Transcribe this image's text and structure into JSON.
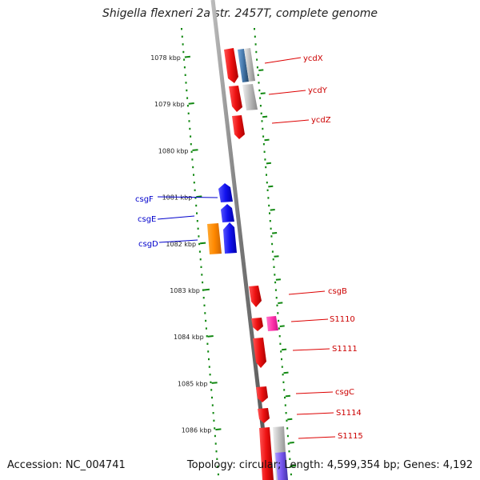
{
  "title": "Shigella flexneri 2a str. 2457T, complete genome",
  "footer": {
    "accession": "Accession: NC_004741",
    "summary": "Topology: circular; Length: 4,599,354 bp; Genes: 4,192"
  },
  "ticks": [
    {
      "label": "1078 kbp"
    },
    {
      "label": "1079 kbp"
    },
    {
      "label": "1080 kbp"
    },
    {
      "label": "1081 kbp"
    },
    {
      "label": "1082 kbp"
    },
    {
      "label": "1083 kbp"
    },
    {
      "label": "1084 kbp"
    },
    {
      "label": "1085 kbp"
    },
    {
      "label": "1086 kbp"
    }
  ],
  "left_genes": [
    {
      "name": "csgF",
      "color": "#0000cc"
    },
    {
      "name": "csgE",
      "color": "#0000cc"
    },
    {
      "name": "csgD",
      "color": "#0000cc"
    }
  ],
  "right_genes": [
    {
      "name": "ycdX",
      "color": "#cc0000"
    },
    {
      "name": "ycdY",
      "color": "#cc0000"
    },
    {
      "name": "ycdZ",
      "color": "#cc0000"
    },
    {
      "name": "csgB",
      "color": "#cc0000"
    },
    {
      "name": "S1110",
      "color": "#cc0000"
    },
    {
      "name": "S1111",
      "color": "#cc0000"
    },
    {
      "name": "csgC",
      "color": "#cc0000"
    },
    {
      "name": "S1114",
      "color": "#cc0000"
    },
    {
      "name": "S1115",
      "color": "#cc0000"
    }
  ],
  "colors": {
    "backbone": "#888888",
    "tick_dots": "#118811",
    "gene_red": "#ee1111",
    "gene_blue": "#1111ee",
    "gene_orange": "#ff8800",
    "gene_grey": "#bbbbbb",
    "gene_steelblue": "#4477aa",
    "gene_pink": "#ff33aa",
    "gene_purple": "#7755ee"
  }
}
